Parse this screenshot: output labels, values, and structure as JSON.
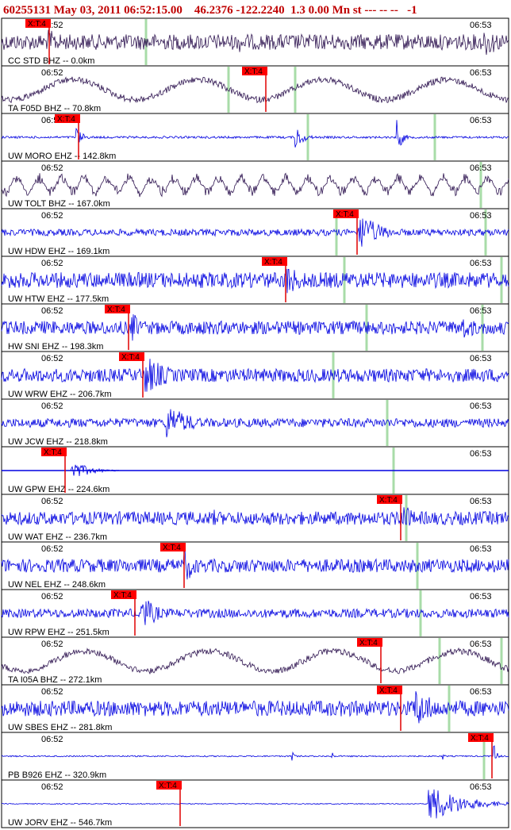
{
  "header": {
    "title": "60255131 May 03, 2011 06:52:15.00    46.2376 -122.2240  1.3 0.00 Mn st --- -- --   -1"
  },
  "time_labels": [
    "06:52",
    "06:53"
  ],
  "pick_label": "X:T:4",
  "traces": [
    {
      "station": "CC STD BHZ -- 0.0km"
    },
    {
      "station": "TA F05D BHZ -- 70.8km"
    },
    {
      "station": "UW MORO EHZ -- 142.8km"
    },
    {
      "station": "UW TOLT BHZ -- 167.0km"
    },
    {
      "station": "UW HDW EHZ -- 169.1km"
    },
    {
      "station": "UW HTW EHZ -- 177.5km"
    },
    {
      "station": "HW SNI EHZ -- 198.3km"
    },
    {
      "station": "UW WRW EHZ -- 206.7km"
    },
    {
      "station": "UW JCW EHZ -- 218.8km"
    },
    {
      "station": "UW GPW EHZ -- 224.6km"
    },
    {
      "station": "UW WAT EHZ -- 236.7km"
    },
    {
      "station": "UW NEL EHZ -- 248.6km"
    },
    {
      "station": "UW RPW EHZ -- 251.5km"
    },
    {
      "station": "TA I05A BHZ -- 272.1km"
    },
    {
      "station": "UW SBES EHZ -- 281.8km"
    },
    {
      "station": "PB B926 EHZ -- 320.9km"
    },
    {
      "station": "UW JORV EHZ -- 546.7km"
    }
  ]
}
